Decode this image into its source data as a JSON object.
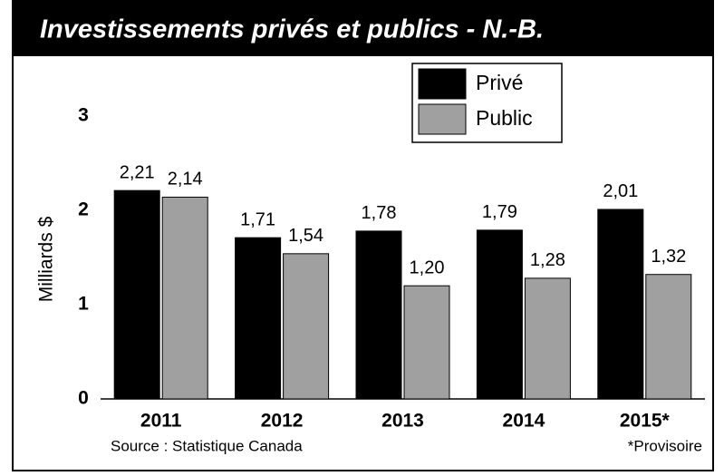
{
  "chart_data": {
    "type": "bar",
    "title": "Investissements privés et publics - N.-B.",
    "y_label": "Milliards $",
    "categories": [
      "2011",
      "2012",
      "2013",
      "2014",
      "2015*"
    ],
    "series": [
      {
        "name": "Privé",
        "color": "#000000",
        "values": [
          2.21,
          1.71,
          1.78,
          1.79,
          2.01
        ],
        "value_labels": [
          "2,21",
          "1,71",
          "1,78",
          "1,79",
          "2,01"
        ]
      },
      {
        "name": "Public",
        "color": "#a0a0a0",
        "values": [
          2.14,
          1.54,
          1.2,
          1.28,
          1.32
        ],
        "value_labels": [
          "2,14",
          "1,54",
          "1,20",
          "1,28",
          "1,32"
        ]
      }
    ],
    "ylim": [
      0,
      3
    ],
    "yticks": [
      0,
      1,
      2,
      3
    ],
    "grid": false,
    "legend": "top",
    "source": "Source : Statistique Canada",
    "note": "*Provisoire"
  }
}
